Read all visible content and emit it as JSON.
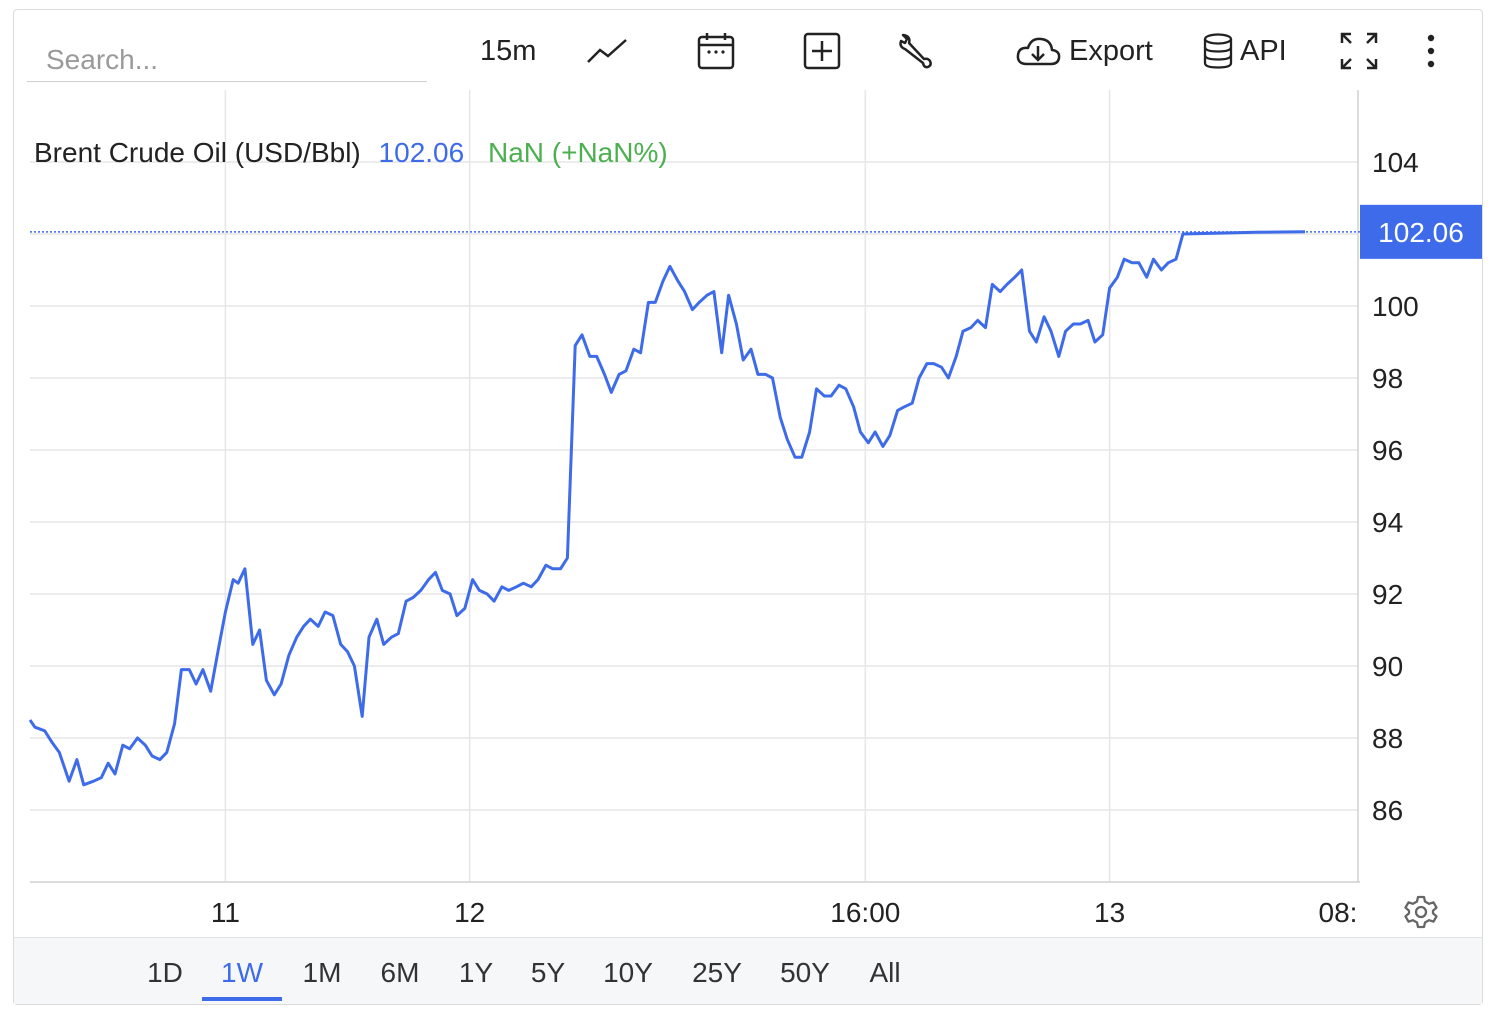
{
  "search": {
    "placeholder": "Search..."
  },
  "toolbar": {
    "interval_label": "15m",
    "export_label": "Export",
    "api_label": "API",
    "icons": [
      "line-chart-icon",
      "calendar-icon",
      "plus-box-icon",
      "wrench-icon",
      "cloud-download-icon",
      "database-icon",
      "fullscreen-icon",
      "more-vertical-icon"
    ]
  },
  "colors": {
    "line": "#3d6bea",
    "change_text": "#4caf50",
    "grid": "#e6e6e6",
    "price_badge_bg": "#3d6bea"
  },
  "legend": {
    "name": "Brent Crude Oil (USD/Bbl)",
    "price": "102.06",
    "change": "NaN (+NaN%)"
  },
  "price_badge": "102.06",
  "chart_data": {
    "type": "line",
    "title": "",
    "xlabel": "",
    "ylabel": "",
    "ylim": [
      84,
      106
    ],
    "y_ticks": [
      86,
      88,
      90,
      92,
      94,
      96,
      98,
      100,
      102,
      104
    ],
    "y_tick_labels": [
      "86",
      "88",
      "90",
      "92",
      "94",
      "96",
      "98",
      "100",
      "",
      "104"
    ],
    "x_ticks": [
      {
        "label": "11",
        "x": 22.5
      },
      {
        "label": "12",
        "x": 47.5
      },
      {
        "label": "16:00",
        "x": 88
      },
      {
        "label": "13",
        "x": 113
      },
      {
        "label": "08:",
        "x": 136
      }
    ],
    "x_range": [
      2.5,
      138.5
    ],
    "grid": true,
    "last_value": 102.06,
    "series": [
      {
        "points": [
          [
            2.5,
            88.5
          ],
          [
            3,
            88.3
          ],
          [
            4,
            88.2
          ],
          [
            4.7,
            87.9
          ],
          [
            5.5,
            87.6
          ],
          [
            6.5,
            86.8
          ],
          [
            7.3,
            87.4
          ],
          [
            8,
            86.7
          ],
          [
            9,
            86.8
          ],
          [
            9.8,
            86.9
          ],
          [
            10.5,
            87.3
          ],
          [
            11.2,
            87.0
          ],
          [
            12,
            87.8
          ],
          [
            12.7,
            87.7
          ],
          [
            13.5,
            88.0
          ],
          [
            14.3,
            87.8
          ],
          [
            15,
            87.5
          ],
          [
            15.8,
            87.4
          ],
          [
            16.5,
            87.6
          ],
          [
            17.3,
            88.4
          ],
          [
            18,
            89.9
          ],
          [
            18.8,
            89.9
          ],
          [
            19.5,
            89.5
          ],
          [
            20.2,
            89.9
          ],
          [
            21,
            89.3
          ],
          [
            21.8,
            90.5
          ],
          [
            22.5,
            91.5
          ],
          [
            23.3,
            92.4
          ],
          [
            23.8,
            92.3
          ],
          [
            24.5,
            92.7
          ],
          [
            25.3,
            90.6
          ],
          [
            26,
            91.0
          ],
          [
            26.7,
            89.6
          ],
          [
            27.5,
            89.2
          ],
          [
            28.2,
            89.5
          ],
          [
            29,
            90.3
          ],
          [
            29.8,
            90.8
          ],
          [
            30.5,
            91.1
          ],
          [
            31.2,
            91.3
          ],
          [
            32,
            91.1
          ],
          [
            32.7,
            91.5
          ],
          [
            33.5,
            91.4
          ],
          [
            34.3,
            90.6
          ],
          [
            35,
            90.4
          ],
          [
            35.7,
            90.0
          ],
          [
            36.5,
            88.6
          ],
          [
            37.2,
            90.8
          ],
          [
            38,
            91.3
          ],
          [
            38.7,
            90.6
          ],
          [
            39.5,
            90.8
          ],
          [
            40.2,
            90.9
          ],
          [
            41,
            91.8
          ],
          [
            41.7,
            91.9
          ],
          [
            42.5,
            92.1
          ],
          [
            43.3,
            92.4
          ],
          [
            44,
            92.6
          ],
          [
            44.7,
            92.1
          ],
          [
            45.5,
            92.0
          ],
          [
            46.2,
            91.4
          ],
          [
            47,
            91.6
          ],
          [
            47.8,
            92.4
          ],
          [
            48.5,
            92.1
          ],
          [
            49.3,
            92.0
          ],
          [
            50,
            91.8
          ],
          [
            50.8,
            92.2
          ],
          [
            51.5,
            92.1
          ],
          [
            52.3,
            92.2
          ],
          [
            53,
            92.3
          ],
          [
            53.8,
            92.2
          ],
          [
            54.5,
            92.4
          ],
          [
            55.3,
            92.8
          ],
          [
            56,
            92.7
          ],
          [
            56.8,
            92.7
          ],
          [
            57.5,
            93.0
          ],
          [
            58.3,
            98.9
          ],
          [
            59,
            99.2
          ],
          [
            59.8,
            98.6
          ],
          [
            60.5,
            98.6
          ],
          [
            61.3,
            98.1
          ],
          [
            62,
            97.6
          ],
          [
            62.8,
            98.1
          ],
          [
            63.5,
            98.2
          ],
          [
            64.3,
            98.8
          ],
          [
            65,
            98.7
          ],
          [
            65.8,
            100.1
          ],
          [
            66.5,
            100.1
          ],
          [
            67.3,
            100.7
          ],
          [
            68,
            101.1
          ],
          [
            68.8,
            100.7
          ],
          [
            69.5,
            100.4
          ],
          [
            70.3,
            99.9
          ],
          [
            71,
            100.1
          ],
          [
            71.8,
            100.3
          ],
          [
            72.5,
            100.4
          ],
          [
            73.3,
            98.7
          ],
          [
            74,
            100.3
          ],
          [
            74.8,
            99.5
          ],
          [
            75.5,
            98.5
          ],
          [
            76.3,
            98.8
          ],
          [
            77,
            98.1
          ],
          [
            77.8,
            98.1
          ],
          [
            78.5,
            98.0
          ],
          [
            79.3,
            96.9
          ],
          [
            80,
            96.3
          ],
          [
            80.8,
            95.8
          ],
          [
            81.5,
            95.8
          ],
          [
            82.3,
            96.5
          ],
          [
            83,
            97.7
          ],
          [
            83.8,
            97.5
          ],
          [
            84.5,
            97.5
          ],
          [
            85.3,
            97.8
          ],
          [
            86,
            97.7
          ],
          [
            86.8,
            97.2
          ],
          [
            87.5,
            96.5
          ],
          [
            88.3,
            96.2
          ],
          [
            89,
            96.5
          ],
          [
            89.8,
            96.1
          ],
          [
            90.5,
            96.4
          ],
          [
            91.3,
            97.1
          ],
          [
            92,
            97.2
          ],
          [
            92.8,
            97.3
          ],
          [
            93.5,
            98.0
          ],
          [
            94.3,
            98.4
          ],
          [
            95,
            98.4
          ],
          [
            95.8,
            98.3
          ],
          [
            96.5,
            98.0
          ],
          [
            97.3,
            98.6
          ],
          [
            98,
            99.3
          ],
          [
            98.8,
            99.4
          ],
          [
            99.5,
            99.6
          ],
          [
            100.3,
            99.4
          ],
          [
            101,
            100.6
          ],
          [
            101.8,
            100.4
          ],
          [
            102.5,
            100.6
          ],
          [
            103.3,
            100.8
          ],
          [
            104,
            101.0
          ],
          [
            104.8,
            99.3
          ],
          [
            105.5,
            99.0
          ],
          [
            106.3,
            99.7
          ],
          [
            107,
            99.3
          ],
          [
            107.8,
            98.6
          ],
          [
            108.5,
            99.3
          ],
          [
            109.3,
            99.5
          ],
          [
            110,
            99.5
          ],
          [
            110.8,
            99.6
          ],
          [
            111.5,
            99.0
          ],
          [
            112.3,
            99.2
          ],
          [
            113,
            100.5
          ],
          [
            113.8,
            100.8
          ],
          [
            114.5,
            101.3
          ],
          [
            115.3,
            101.2
          ],
          [
            116,
            101.2
          ],
          [
            116.8,
            100.8
          ],
          [
            117.5,
            101.3
          ],
          [
            118.3,
            101.0
          ],
          [
            119,
            101.2
          ],
          [
            119.8,
            101.3
          ],
          [
            120.5,
            102.0
          ],
          [
            128,
            102.05
          ],
          [
            133,
            102.06
          ]
        ]
      }
    ]
  },
  "ranges": {
    "items": [
      "1D",
      "1W",
      "1M",
      "6M",
      "1Y",
      "5Y",
      "10Y",
      "25Y",
      "50Y",
      "All"
    ],
    "active": "1W"
  }
}
